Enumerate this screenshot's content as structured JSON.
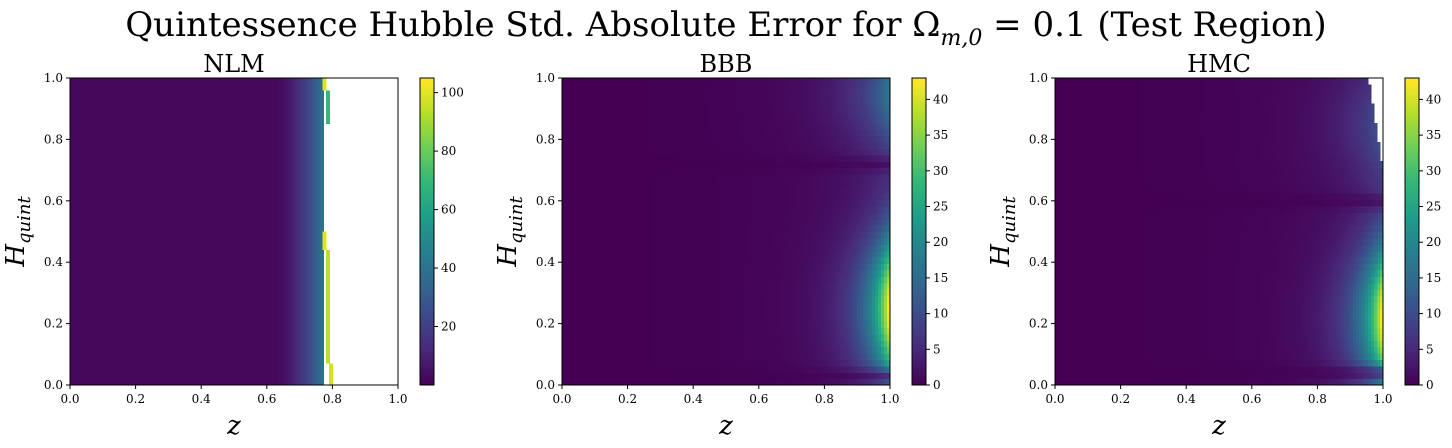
{
  "figure": {
    "title": "Quintessence Hubble Std. Absolute Error for Ω",
    "title_sub": "m,0",
    "title_tail": " = 0.1 (Test Region)"
  },
  "colormap": {
    "name": "viridis",
    "stops": [
      "#440154",
      "#482878",
      "#3e4989",
      "#31688e",
      "#26828e",
      "#1f9e89",
      "#35b779",
      "#6ece58",
      "#b5de2b",
      "#fde725"
    ]
  },
  "chart_data": [
    {
      "type": "heatmap",
      "title": "NLM",
      "xlabel": "z",
      "ylabel_main": "H",
      "ylabel_sub": "quint",
      "xlim": [
        0,
        1
      ],
      "ylim": [
        0,
        1
      ],
      "xticks": [
        "0.0",
        "0.2",
        "0.4",
        "0.6",
        "0.8",
        "1.0"
      ],
      "yticks": [
        "0.0",
        "0.2",
        "0.4",
        "0.6",
        "0.8",
        "1.0"
      ],
      "colorbar": {
        "min": 0,
        "max": 105,
        "ticks": [
          20,
          40,
          60,
          80,
          100
        ]
      },
      "field": {
        "description_free": true,
        "model": "vertical_band",
        "rise_start_z": 0.62,
        "valid_until_z": 0.77,
        "edge_value": 38,
        "spikes": [
          {
            "z": 0.77,
            "y0": 0.96,
            "y1": 1.0,
            "value": 100
          },
          {
            "z": 0.78,
            "y0": 0.85,
            "y1": 0.96,
            "value": 70
          },
          {
            "z": 0.77,
            "y0": 0.44,
            "y1": 0.5,
            "value": 100
          },
          {
            "z": 0.78,
            "y0": 0.07,
            "y1": 0.44,
            "value": 95
          },
          {
            "z": 0.79,
            "y0": 0.0,
            "y1": 0.07,
            "value": 98
          }
        ],
        "nan_region": "z > ~0.79 (white)"
      }
    },
    {
      "type": "heatmap",
      "title": "BBB",
      "xlabel": "z",
      "ylabel_main": "H",
      "ylabel_sub": "quint",
      "xlim": [
        0,
        1
      ],
      "ylim": [
        0,
        1
      ],
      "xticks": [
        "0.0",
        "0.2",
        "0.4",
        "0.6",
        "0.8",
        "1.0"
      ],
      "yticks": [
        "0.0",
        "0.2",
        "0.4",
        "0.6",
        "0.8",
        "1.0"
      ],
      "colorbar": {
        "min": 0,
        "max": 43,
        "ticks": [
          0,
          5,
          10,
          15,
          20,
          25,
          30,
          35,
          40
        ]
      },
      "field": {
        "model": "edge_lobe",
        "peak_value": 42,
        "peak_y": 0.25,
        "secondary_peak": {
          "y": 0.95,
          "value": 14
        },
        "dark_bands_y": [
          0.72,
          0.03
        ]
      }
    },
    {
      "type": "heatmap",
      "title": "HMC",
      "xlabel": "z",
      "ylabel_main": "H",
      "ylabel_sub": "quint",
      "xlim": [
        0,
        1
      ],
      "ylim": [
        0,
        1
      ],
      "xticks": [
        "0.0",
        "0.2",
        "0.4",
        "0.6",
        "0.8",
        "1.0"
      ],
      "yticks": [
        "0.0",
        "0.2",
        "0.4",
        "0.6",
        "0.8",
        "1.0"
      ],
      "colorbar": {
        "min": 0,
        "max": 43,
        "ticks": [
          0,
          5,
          10,
          15,
          20,
          25,
          30,
          35,
          40
        ]
      },
      "field": {
        "model": "edge_lobe",
        "peak_value": 42,
        "peak_y": 0.22,
        "secondary_peak": {
          "y": 0.85,
          "value": 9
        },
        "dark_bands_y": [
          0.6,
          0.04
        ],
        "nan_region": "top-right corner staircase, z > ~0.95, H_quint > ~0.71"
      }
    }
  ]
}
